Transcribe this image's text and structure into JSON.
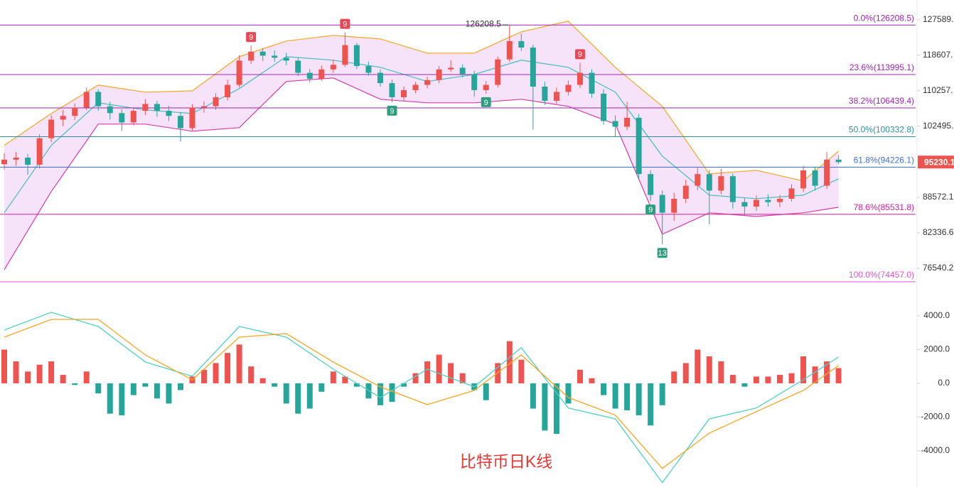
{
  "chart_data": {
    "type": "candlestick",
    "title": "比特币日K线",
    "log_scale": true,
    "ylim": [
      73040,
      132870
    ],
    "yticks": [
      {
        "value": 127589,
        "label": "127589."
      },
      {
        "value": 118607,
        "label": "118607."
      },
      {
        "value": 110257,
        "label": "110257."
      },
      {
        "value": 102495,
        "label": "102495."
      },
      {
        "value": 88572.1,
        "label": "88572.1"
      },
      {
        "value": 82336.6,
        "label": "82336.6"
      },
      {
        "value": 76540.2,
        "label": "76540.2"
      }
    ],
    "up_color": "#ef5350",
    "down_color": "#26a69a",
    "candles": [
      [
        94800,
        97000,
        93800,
        95700
      ],
      [
        95700,
        97200,
        94500,
        96100
      ],
      [
        96100,
        96800,
        92800,
        94700
      ],
      [
        94700,
        100800,
        94000,
        100000
      ],
      [
        100000,
        104800,
        99200,
        103900
      ],
      [
        103900,
        106000,
        102500,
        104700
      ],
      [
        104700,
        107400,
        103800,
        106500
      ],
      [
        106500,
        111000,
        105900,
        110000
      ],
      [
        110000,
        110600,
        105800,
        106800
      ],
      [
        106800,
        107800,
        103900,
        105300
      ],
      [
        105300,
        106200,
        101500,
        103300
      ],
      [
        103300,
        106600,
        102700,
        105800
      ],
      [
        105800,
        108400,
        104900,
        107300
      ],
      [
        107300,
        108000,
        104500,
        105800
      ],
      [
        105800,
        106900,
        103600,
        104700
      ],
      [
        104700,
        105500,
        99300,
        102100
      ],
      [
        102100,
        107200,
        101600,
        106500
      ],
      [
        106500,
        107900,
        105400,
        106800
      ],
      [
        106800,
        109700,
        106000,
        108800
      ],
      [
        108800,
        112800,
        108100,
        111600
      ],
      [
        111600,
        118600,
        111000,
        117300
      ],
      [
        117300,
        121000,
        116500,
        119500
      ],
      [
        119500,
        120400,
        117200,
        118500
      ],
      [
        118500,
        119800,
        117000,
        118000
      ],
      [
        118000,
        119200,
        116200,
        117300
      ],
      [
        117300,
        118000,
        113600,
        114400
      ],
      [
        114400,
        115300,
        112100,
        113000
      ],
      [
        113000,
        116100,
        112500,
        115200
      ],
      [
        115200,
        117500,
        114400,
        116300
      ],
      [
        116300,
        124300,
        115800,
        121100
      ],
      [
        121100,
        121700,
        115300,
        116000
      ],
      [
        116000,
        117100,
        113700,
        114400
      ],
      [
        114400,
        115200,
        111200,
        112000
      ],
      [
        112000,
        112800,
        107700,
        108800
      ],
      [
        108800,
        111200,
        108100,
        110400
      ],
      [
        110400,
        112300,
        109700,
        111600
      ],
      [
        111600,
        113500,
        110800,
        112700
      ],
      [
        112700,
        116000,
        112000,
        115200
      ],
      [
        115200,
        117400,
        114600,
        115600
      ],
      [
        115600,
        116400,
        113300,
        114100
      ],
      [
        114100,
        114900,
        108900,
        110400
      ],
      [
        110400,
        112500,
        109600,
        111600
      ],
      [
        111600,
        118300,
        111000,
        117600
      ],
      [
        117600,
        126208.5,
        117000,
        122100
      ],
      [
        122100,
        124000,
        119600,
        120500
      ],
      [
        120500,
        121200,
        101800,
        111200
      ],
      [
        111200,
        112300,
        107100,
        108000
      ],
      [
        108000,
        111000,
        107400,
        110000
      ],
      [
        110000,
        112600,
        109200,
        111600
      ],
      [
        111600,
        116800,
        110900,
        114400
      ],
      [
        114400,
        115200,
        108700,
        109600
      ],
      [
        109600,
        110600,
        102800,
        103600
      ],
      [
        103600,
        104800,
        100400,
        102400
      ],
      [
        102400,
        107800,
        101700,
        104300
      ],
      [
        104300,
        105100,
        92000,
        92900
      ],
      [
        92900,
        93600,
        87900,
        89000
      ],
      [
        89000,
        89800,
        80400,
        85800
      ],
      [
        85800,
        89400,
        84400,
        88300
      ],
      [
        88300,
        91800,
        87500,
        90700
      ],
      [
        90700,
        94200,
        89900,
        92900
      ],
      [
        92900,
        93700,
        83800,
        89800
      ],
      [
        89800,
        93900,
        89100,
        92500
      ],
      [
        92500,
        93000,
        86500,
        87700
      ],
      [
        87700,
        88400,
        85300,
        86900
      ],
      [
        86900,
        88900,
        86100,
        88100
      ],
      [
        88100,
        89100,
        86900,
        87700
      ],
      [
        87700,
        89000,
        86800,
        88300
      ],
      [
        88300,
        91000,
        87800,
        90200
      ],
      [
        90200,
        94500,
        89500,
        93600
      ],
      [
        93600,
        94300,
        89800,
        90700
      ],
      [
        90700,
        97200,
        90100,
        95700
      ],
      [
        95700,
        96600,
        94800,
        95200
      ]
    ],
    "bands": {
      "x": [
        0,
        4,
        8,
        12,
        16,
        20,
        24,
        28,
        32,
        36,
        40,
        44,
        48,
        52,
        56,
        60,
        64,
        68,
        71
      ],
      "upper": [
        98540,
        105220,
        111550,
        109940,
        110240,
        118260,
        122120,
        123560,
        122650,
        119130,
        119130,
        124460,
        127220,
        115700,
        106780,
        92950,
        93630,
        91600,
        97390
      ],
      "middle": [
        85780,
        98540,
        107560,
        106000,
        105220,
        110750,
        118260,
        117410,
        115700,
        112370,
        114030,
        117410,
        115700,
        109940,
        96400,
        88960,
        88320,
        88960,
        92000
      ],
      "lower": [
        76320,
        89620,
        102950,
        102950,
        101460,
        102200,
        112370,
        113200,
        108350,
        107560,
        107560,
        108350,
        106780,
        102950,
        82100,
        85780,
        85150,
        85780,
        86780
      ],
      "upper_color": "#f5a623",
      "middle_color": "#45bdbd",
      "lower_color": "#d63ca6",
      "fill": "#f3d9f7"
    },
    "fib_levels": [
      {
        "label": "0.0%(126208.5)",
        "value": 126208.5,
        "color": "#9c27b0"
      },
      {
        "label": "23.6%(113995.1)",
        "value": 113995.1,
        "color": "#9c27b0"
      },
      {
        "label": "38.2%(106439.4)",
        "value": 106439.4,
        "color": "#9c27b0"
      },
      {
        "label": "50.0%(100332.8)",
        "value": 100332.8,
        "color": "#2f8f9d"
      },
      {
        "label": "61.8%(94226.1)",
        "value": 94226.1,
        "color": "#3f6fd8"
      },
      {
        "label": "78.6%(85531.8)",
        "value": 85531.8,
        "color": "#d81b9a"
      },
      {
        "label": "100.0%(74457.0)",
        "value": 74457.0,
        "color": "#e055c8"
      }
    ],
    "last_price": 95230.1,
    "high_annotation": 126208.5,
    "td_marks": [
      "9",
      "9",
      "9",
      "9",
      "9",
      "9",
      "13"
    ],
    "macd": {
      "ylim": [
        -6150,
        5260
      ],
      "yticks": [
        {
          "value": 4000,
          "label": "4000.0"
        },
        {
          "value": 2000,
          "label": "2000.0"
        },
        {
          "value": 0,
          "label": "0.0"
        },
        {
          "value": -2000,
          "label": "-2000.0"
        },
        {
          "value": -4000,
          "label": "-4000.0"
        }
      ],
      "x": [
        0,
        4,
        8,
        12,
        16,
        20,
        24,
        28,
        32,
        36,
        40,
        44,
        48,
        52,
        56,
        60,
        64,
        68,
        71
      ],
      "dif": {
        "color": "#4fd1c5",
        "values": [
          3160,
          4210,
          3370,
          1260,
          420,
          3370,
          2740,
          840,
          -840,
          840,
          -210,
          2110,
          -1470,
          -2110,
          -5890,
          -2110,
          -1470,
          210,
          1560
        ]
      },
      "dea": {
        "color": "#f5a623",
        "values": [
          2740,
          3790,
          3790,
          1680,
          210,
          2740,
          2950,
          1260,
          -210,
          -1260,
          -420,
          1680,
          -840,
          -1890,
          -5050,
          -2950,
          -1680,
          -420,
          1050
        ]
      },
      "hist": [
        2000,
        1300,
        700,
        1100,
        1300,
        500,
        -100,
        700,
        -600,
        -1800,
        -1900,
        -700,
        -200,
        -900,
        -1200,
        -400,
        400,
        800,
        1200,
        1800,
        2300,
        1000,
        300,
        -200,
        -1200,
        -1800,
        -1500,
        -500,
        700,
        400,
        -200,
        -900,
        -1300,
        -1100,
        -200,
        600,
        1300,
        1700,
        1200,
        600,
        -400,
        -1000,
        1200,
        2500,
        1400,
        -1500,
        -2800,
        -3000,
        -1200,
        800,
        300,
        -700,
        -1500,
        -1600,
        -1900,
        -2500,
        -1300,
        700,
        1200,
        2000,
        1600,
        1300,
        500,
        -200,
        400,
        400,
        500,
        600,
        1600,
        1000,
        1300,
        900
      ],
      "up_color": "#ef5350",
      "down_color": "#26a69a"
    }
  }
}
